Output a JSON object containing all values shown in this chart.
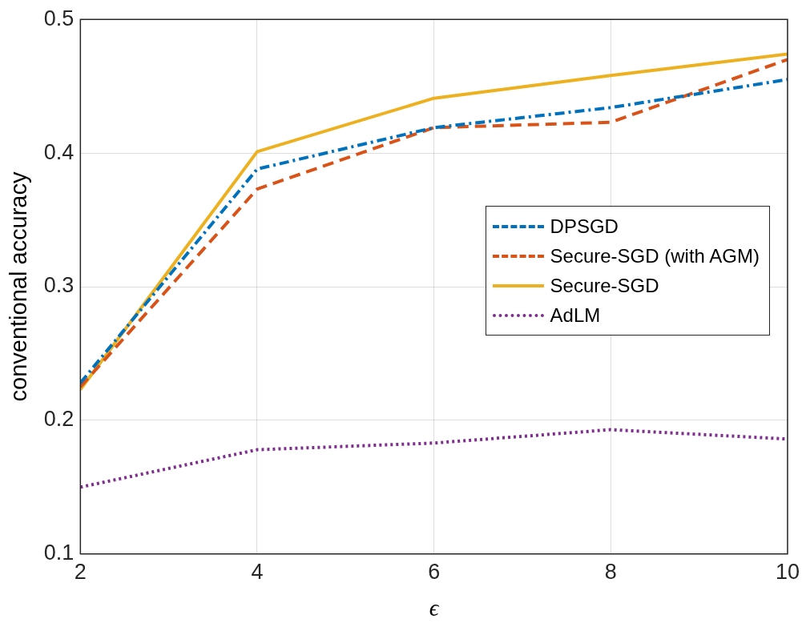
{
  "chart_data": {
    "type": "line",
    "xlabel": "ϵ",
    "ylabel": "conventional accuracy",
    "x": [
      2,
      4,
      6,
      8,
      10
    ],
    "series": [
      {
        "name": "DPSGD",
        "color": "#0072bd",
        "line_style": "dashdot",
        "values": [
          0.228,
          0.388,
          0.419,
          0.434,
          0.455
        ]
      },
      {
        "name": "Secure-SGD (with AGM)",
        "color": "#d95319",
        "line_style": "dashed",
        "values": [
          0.225,
          0.373,
          0.419,
          0.423,
          0.47
        ]
      },
      {
        "name": "Secure-SGD",
        "color": "#edb120",
        "line_style": "solid",
        "values": [
          0.223,
          0.401,
          0.441,
          0.458,
          0.474
        ]
      },
      {
        "name": "AdLM",
        "color": "#7e2f8e",
        "line_style": "dotted",
        "values": [
          0.15,
          0.178,
          0.183,
          0.193,
          0.186
        ]
      }
    ],
    "xlim": [
      2,
      10
    ],
    "xticks": [
      2,
      4,
      6,
      8,
      10
    ],
    "ylim": [
      0.1,
      0.5
    ],
    "yticks": [
      0.1,
      0.2,
      0.3,
      0.4,
      0.5
    ],
    "grid": true,
    "legend": "right",
    "marker": "none"
  }
}
